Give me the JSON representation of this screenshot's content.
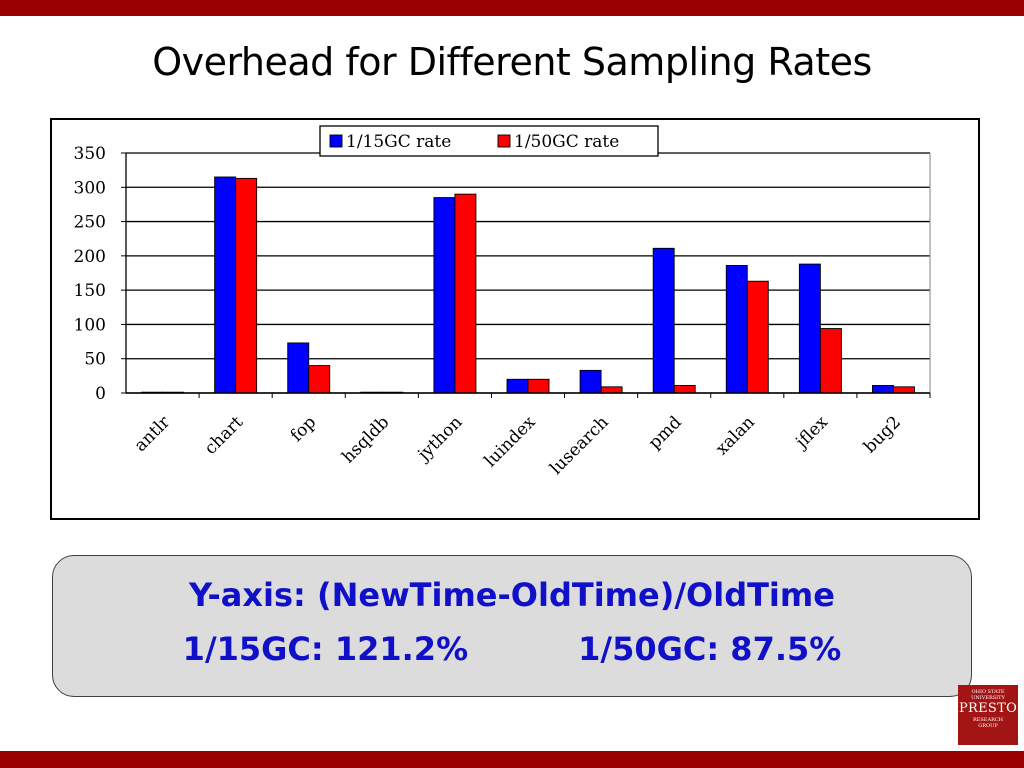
{
  "slide": {
    "title": "Overhead for Different Sampling Rates",
    "note_line1": "Y-axis: (NewTime-OldTime)/OldTime",
    "note_15gc": "1/15GC: 121.2%",
    "note_50gc": "1/50GC: 87.5%",
    "logo_line1": "OHIO STATE",
    "logo_line2": "UNIVERSITY",
    "logo_main": "PRESTO",
    "logo_line3": "RESEARCH",
    "logo_line4": "GROUP"
  },
  "colors": {
    "accent": "#990000",
    "series1": "#0000ff",
    "series2": "#ff0000",
    "note_text": "#1010c8",
    "note_bg": "#dcdcdc"
  },
  "chart_data": {
    "type": "bar",
    "title": "",
    "xlabel": "",
    "ylabel": "",
    "ylim": [
      0,
      350
    ],
    "yticks": [
      0,
      50,
      100,
      150,
      200,
      250,
      300,
      350
    ],
    "grid": true,
    "legend_position": "top-center",
    "categories": [
      "antlr",
      "chart",
      "fop",
      "hsqldb",
      "jython",
      "luindex",
      "lusearch",
      "pmd",
      "xalan",
      "jflex",
      "bug2"
    ],
    "series": [
      {
        "name": "1/15GC rate",
        "color": "#0000ff",
        "values": [
          0,
          315,
          73,
          1,
          285,
          20,
          33,
          211,
          186,
          188,
          11
        ]
      },
      {
        "name": "1/50GC rate",
        "color": "#ff0000",
        "values": [
          0,
          313,
          40,
          1,
          290,
          20,
          9,
          11,
          163,
          94,
          9
        ]
      }
    ]
  }
}
